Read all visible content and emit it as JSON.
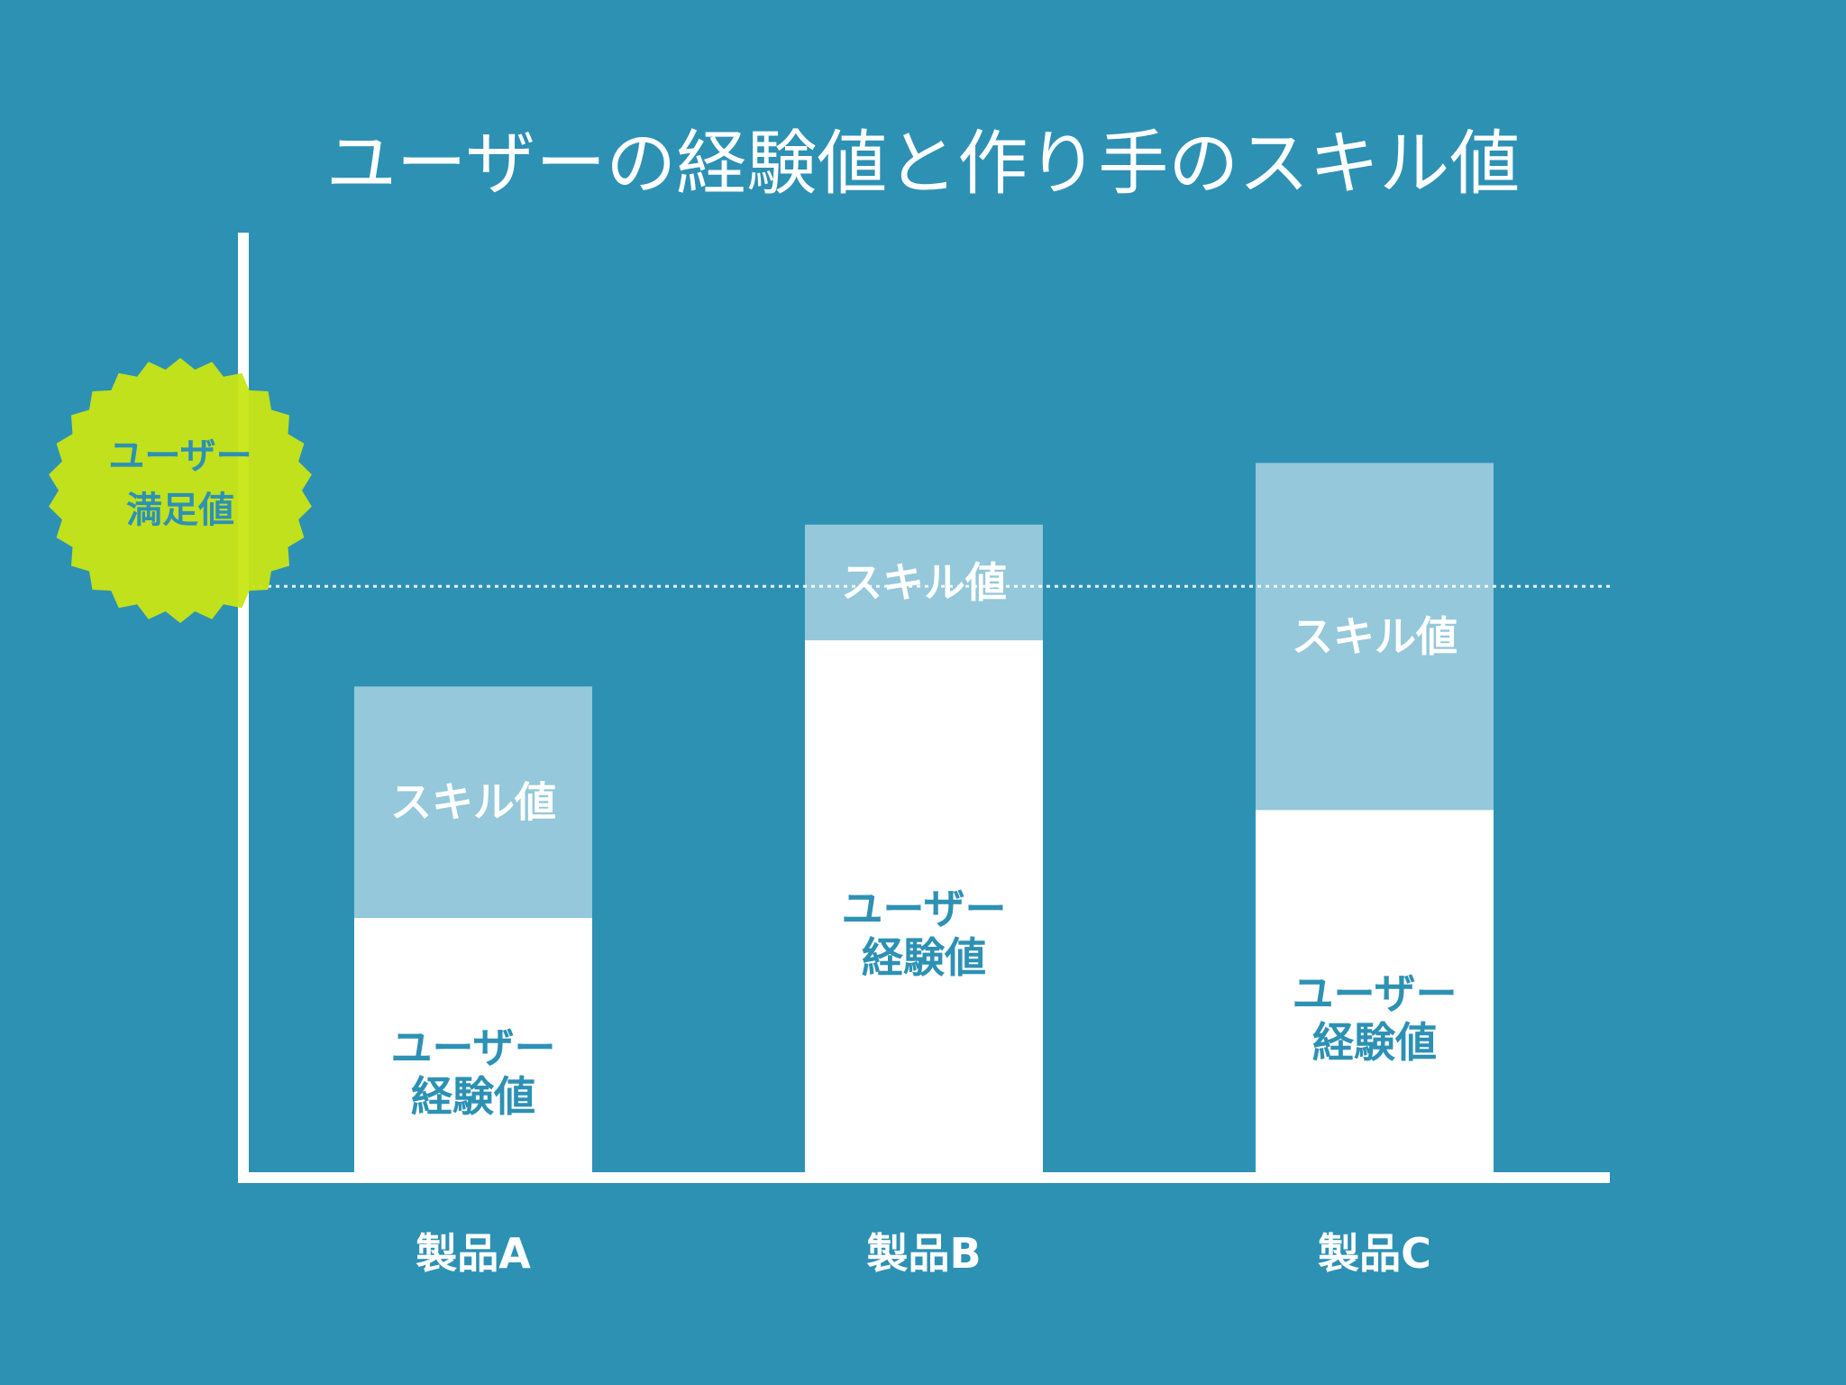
{
  "chart_data": {
    "type": "bar",
    "stacked": true,
    "title": "ユーザーの経験値と作り手のスキル値",
    "categories": [
      "製品A",
      "製品B",
      "製品C"
    ],
    "series": [
      {
        "key": "experience",
        "label": [
          "ユーザー",
          "経験値"
        ],
        "values": [
          33,
          69,
          47
        ]
      },
      {
        "key": "skill",
        "label": [
          "スキル値"
        ],
        "values": [
          30,
          15,
          45
        ]
      }
    ],
    "ylim": [
      0,
      100
    ],
    "threshold": {
      "value": 76,
      "label": [
        "ユーザー",
        "満足値"
      ]
    },
    "grid": false,
    "legend": "none"
  },
  "colors": {
    "background": "#2d91b4",
    "experience": "#ffffff",
    "skill": "#94c8da",
    "experience_text": "#2d91b4",
    "skill_text": "#ffffff",
    "axis": "#ffffff",
    "badge": "#c8e614",
    "badge_text": "#2d91b4"
  }
}
